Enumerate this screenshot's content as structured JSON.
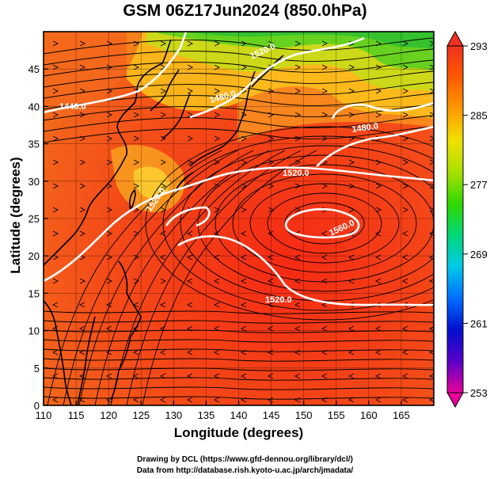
{
  "title": "GSM 06Z17Jun2024 (850.0hPa)",
  "x_axis": {
    "label": "Longitude (degrees)",
    "range": [
      110,
      170
    ],
    "ticks": [
      110,
      115,
      120,
      125,
      130,
      135,
      140,
      145,
      150,
      155,
      160,
      165
    ],
    "tick_labels": [
      "110",
      "115",
      "120",
      "125",
      "130",
      "135",
      "140",
      "145",
      "150",
      "155",
      "160",
      "165"
    ]
  },
  "y_axis": {
    "label": "Latitude  (degrees)",
    "range": [
      0,
      50
    ],
    "ticks": [
      0,
      5,
      10,
      15,
      20,
      25,
      30,
      35,
      40,
      45
    ],
    "tick_labels": [
      "0",
      "5",
      "10",
      "15",
      "20",
      "25",
      "30",
      "35",
      "40",
      "45"
    ]
  },
  "colorbar": {
    "min": 253,
    "max": 293,
    "tick_values": [
      293,
      285,
      277,
      269,
      261,
      253
    ],
    "tick_labels": [
      "293",
      "285",
      "277",
      "269",
      "261",
      "253"
    ],
    "colors": [
      "#e8009a",
      "#5a00c8",
      "#0010d0",
      "#0070ff",
      "#00c8e8",
      "#00d878",
      "#30d800",
      "#a8e000",
      "#f0e000",
      "#ff9a00",
      "#ff5a00",
      "#f03020"
    ]
  },
  "contours": {
    "labels": [
      "1440.0",
      "1480.0",
      "1480.0",
      "1520.0",
      "1520.0",
      "1520.0",
      "1560.0",
      "1520.0"
    ]
  },
  "credits": {
    "line1": "Drawing by DCL (https://www.gfd-dennou.org/library/dcl/)",
    "line2": "Data from http://database.rish.kyoto-u.ac.jp/arch/jmadata/"
  }
}
